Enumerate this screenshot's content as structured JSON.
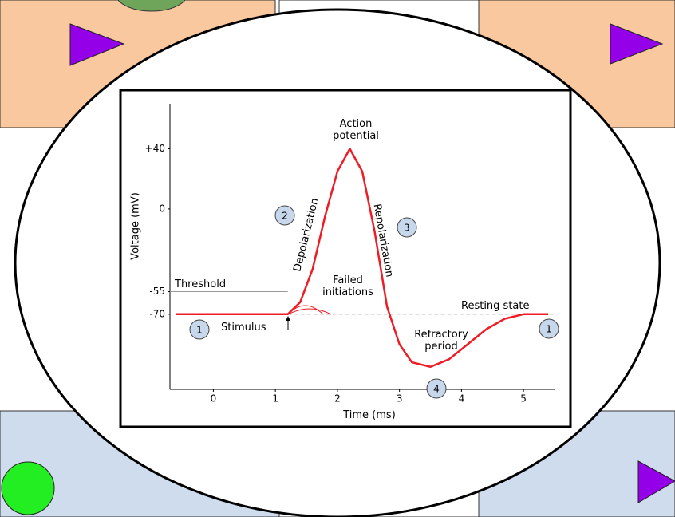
{
  "chart_data": {
    "type": "line",
    "y_label": "Voltage (mV)",
    "x_label": "Time (ms)",
    "x": [
      -0.6,
      1.2,
      1.4,
      1.6,
      1.8,
      2.0,
      2.2,
      2.4,
      2.6,
      2.8,
      3.0,
      3.2,
      3.5,
      3.8,
      4.1,
      4.4,
      4.7,
      5.0,
      5.4
    ],
    "series": [
      {
        "color": "#ee1c24",
        "values": [
          -70,
          -70,
          -62,
          -40,
          -5,
          25,
          40,
          25,
          -15,
          -65,
          -90,
          -102,
          -105,
          -100,
          -90,
          -80,
          -73,
          -70,
          -70
        ]
      }
    ],
    "xlim": [
      -0.7,
      5.5
    ],
    "xticks": [
      0,
      1,
      2,
      3,
      4,
      5
    ],
    "ylim": [
      -120,
      70
    ],
    "yticks": [
      {
        "value": 40,
        "label": "+40"
      },
      0,
      -55,
      -70
    ],
    "annotations": {
      "action": "Action potential",
      "threshold": "Threshold",
      "failed": "Failed initiations",
      "resting": "Resting state",
      "stimulus": "Stimulus",
      "refractory": "Refractory period",
      "depolarization": "Depolarization",
      "repolarization": "Repolarization"
    },
    "steps": [
      "1",
      "2",
      "3",
      "4",
      "1"
    ]
  }
}
